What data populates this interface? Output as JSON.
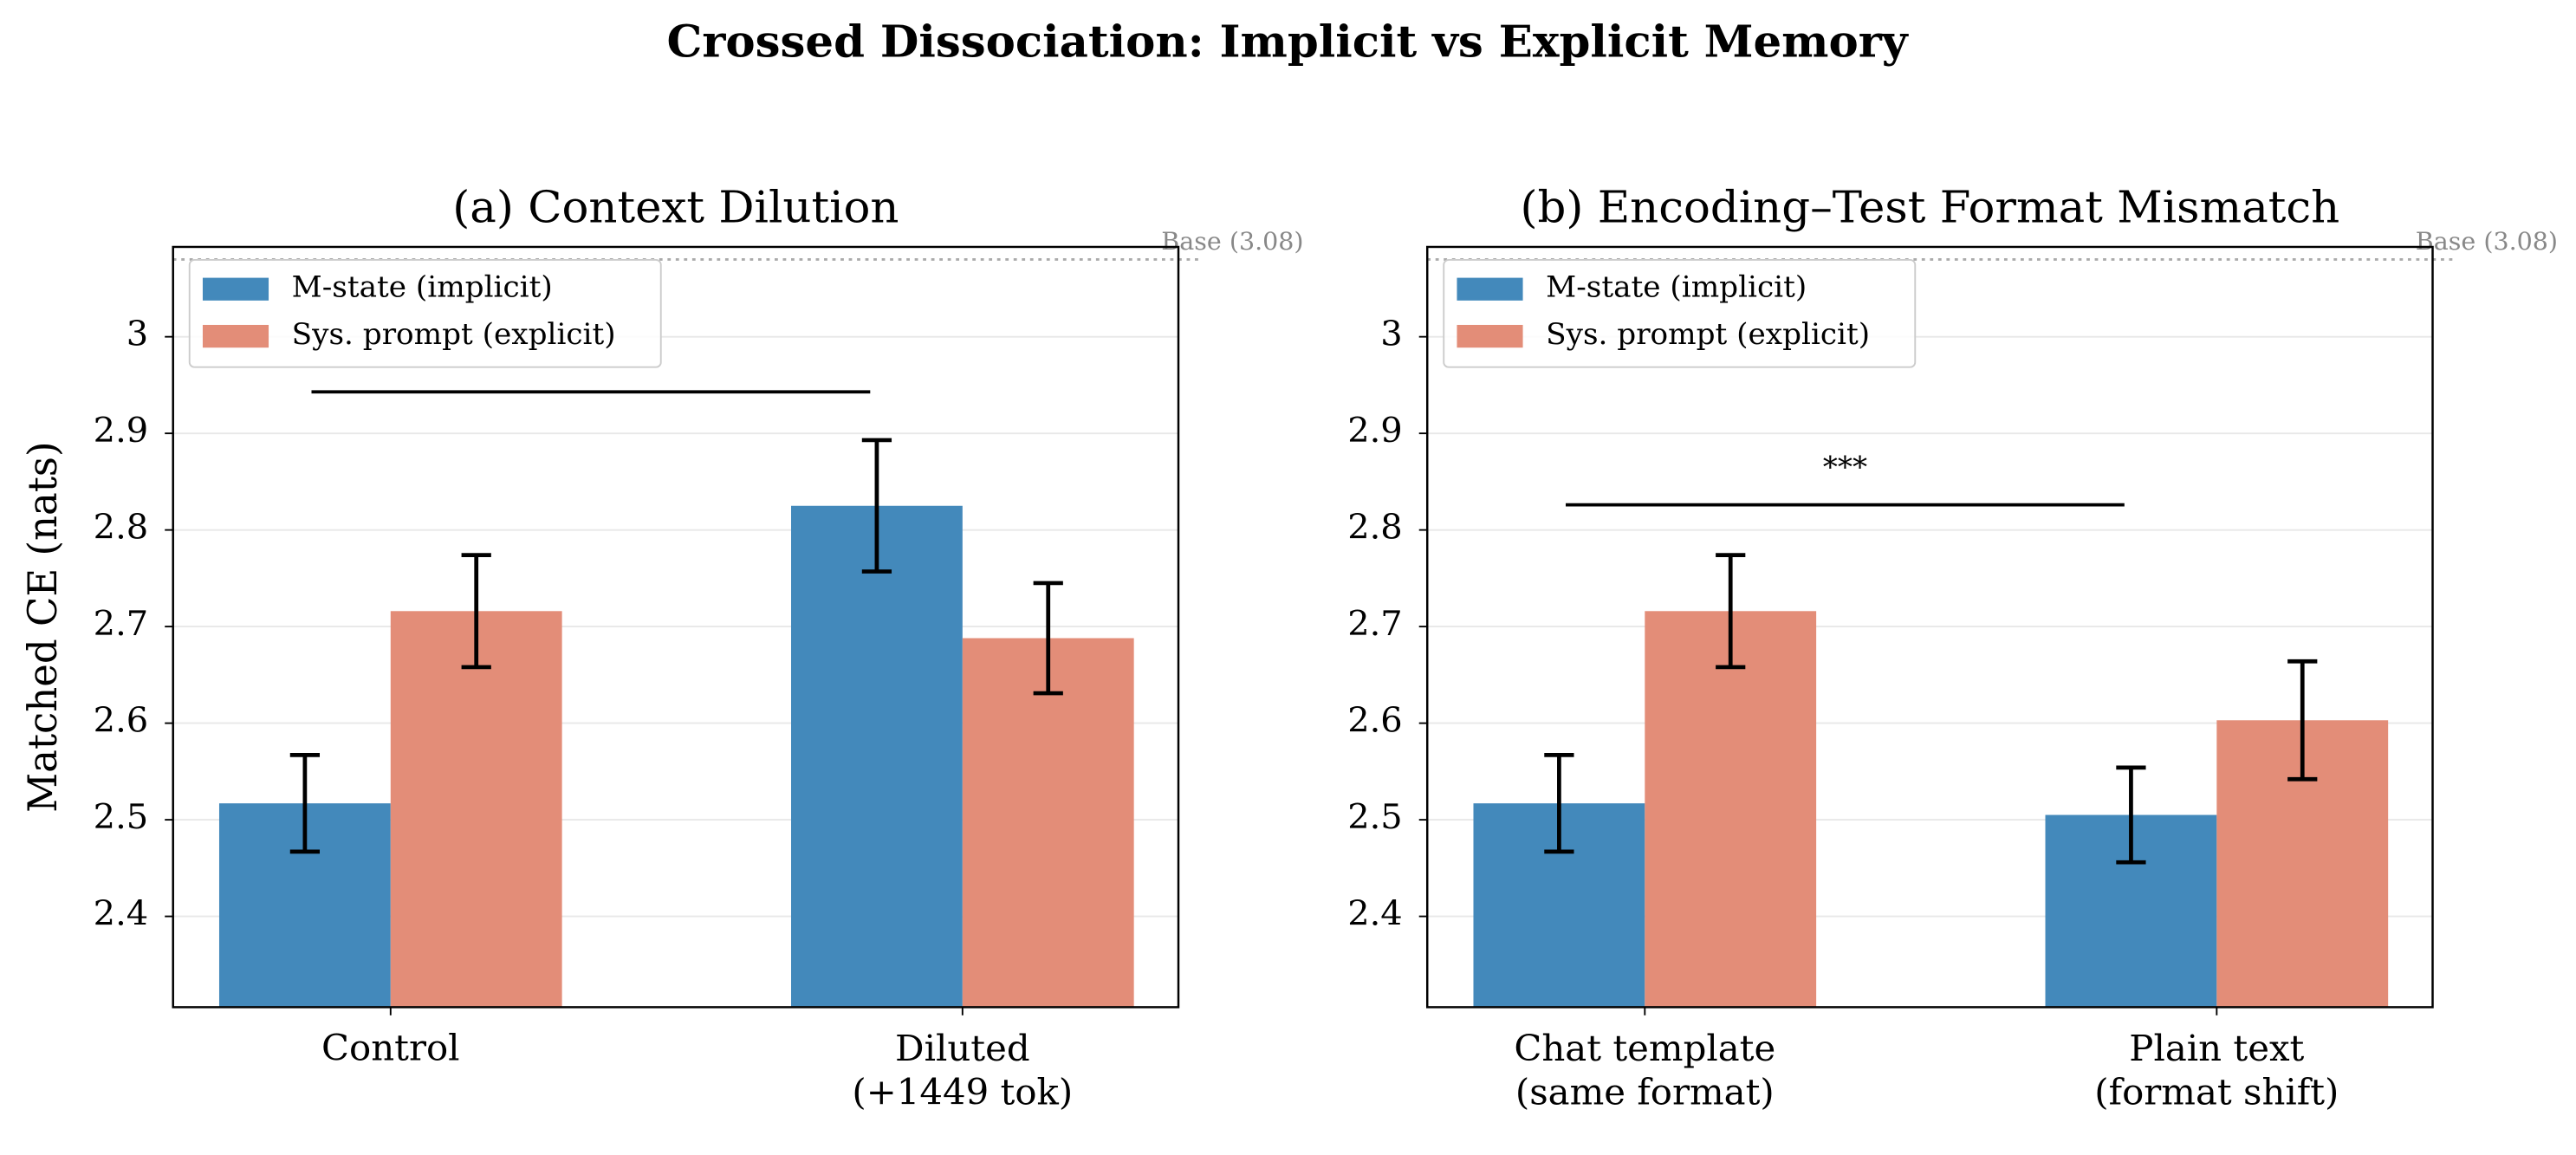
{
  "title": "Crossed Dissociation: Implicit vs Explicit Memory",
  "chart_data": [
    {
      "type": "bar",
      "title": "(a) Context Dilution",
      "ylabel": "Matched CE (nats)",
      "categories": [
        "Control",
        "Diluted\n(+1449 tok)"
      ],
      "series": [
        {
          "name": "M-state (implicit)",
          "color": "#4389bb",
          "values": [
            2.517,
            2.825
          ],
          "errors": [
            0.05,
            0.068
          ]
        },
        {
          "name": "Sys. prompt (explicit)",
          "color": "#e38d78",
          "values": [
            2.716,
            2.688
          ],
          "errors": [
            0.058,
            0.057
          ]
        }
      ],
      "ylim": [
        2.306,
        3.093
      ],
      "yticks": [
        2.4,
        2.5,
        2.6,
        2.7,
        2.8,
        2.9,
        3.0
      ],
      "grid": true,
      "legend": "upper-left",
      "base_value": 3.08,
      "base_label": "Base (3.08)",
      "significance": {
        "y": 2.943
      }
    },
    {
      "type": "bar",
      "title": "(b) Encoding–Test Format Mismatch",
      "categories": [
        "Chat template\n(same format)",
        "Plain text\n(format shift)"
      ],
      "series": [
        {
          "name": "M-state (implicit)",
          "color": "#4389bb",
          "values": [
            2.517,
            2.505
          ],
          "errors": [
            0.05,
            0.049
          ]
        },
        {
          "name": "Sys. prompt (explicit)",
          "color": "#e38d78",
          "values": [
            2.716,
            2.603
          ],
          "errors": [
            0.058,
            0.061
          ]
        }
      ],
      "ylim": [
        2.306,
        3.093
      ],
      "yticks": [
        2.4,
        2.5,
        2.6,
        2.7,
        2.8,
        2.9,
        3.0
      ],
      "grid": true,
      "legend": "upper-left",
      "base_value": 3.08,
      "base_label": "Base (3.08)",
      "significance": {
        "y": 2.826,
        "label": "***"
      }
    }
  ]
}
